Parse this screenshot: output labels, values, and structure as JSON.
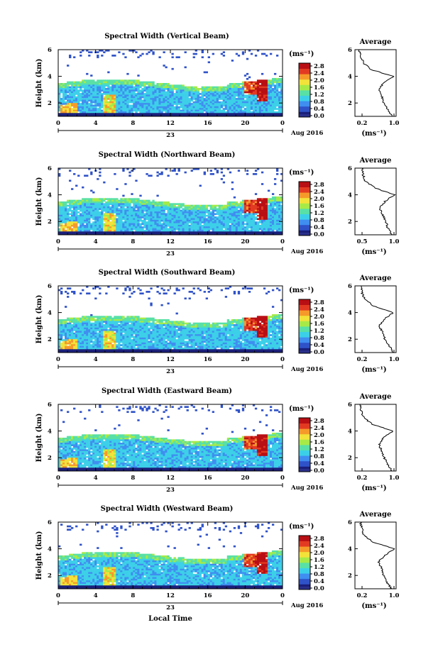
{
  "panels": [
    {
      "title": "Spectral Width (Vertical Beam)",
      "avg_xticks": [
        "0.2",
        "1.0"
      ]
    },
    {
      "title": "Spectral Width (Northward Beam)",
      "avg_xticks": [
        "0.5",
        "1.0"
      ]
    },
    {
      "title": "Spectral Width (Southward Beam)",
      "avg_xticks": [
        "0.2",
        "1.0"
      ]
    },
    {
      "title": "Spectral Width (Eastward Beam)",
      "avg_xticks": [
        "0.2",
        "1.0"
      ]
    },
    {
      "title": "Spectral Width (Westward Beam)",
      "avg_xticks": [
        "0.2",
        "1.0"
      ]
    }
  ],
  "common": {
    "ylabel": "Height (km)",
    "yticks": [
      "2",
      "4",
      "6"
    ],
    "xticks": [
      "0",
      "4",
      "8",
      "12",
      "16",
      "20",
      "0"
    ],
    "day_label": "23",
    "month_label": "Aug 2016",
    "colorbar_unit": "(ms⁻¹)",
    "colorbar_ticks": [
      "0.0",
      "0.4",
      "0.8",
      "1.2",
      "1.6",
      "2.0",
      "2.4",
      "2.8"
    ],
    "avg_title": "Average",
    "avg_unit": "(ms⁻¹)",
    "avg_yticks": [
      "2",
      "4",
      "6"
    ],
    "xlabel_bottom": "Local Time"
  },
  "colors": {
    "colormap": [
      "#1a1f7a",
      "#2f52c8",
      "#3f8ef0",
      "#3cd0e8",
      "#58e0a6",
      "#a7ea48",
      "#f2e23a",
      "#f59a2a",
      "#e23a22",
      "#b80f14"
    ],
    "missing": "#ffffff",
    "noise_band": "#2a2f8a"
  },
  "chart_data": [
    {
      "type": "heatmap",
      "title": "Spectral Width (Vertical Beam)",
      "xlabel": "",
      "ylabel": "Height (km)",
      "x_range_hours": [
        0,
        24
      ],
      "y_range_km": [
        1,
        6
      ],
      "colorbar": {
        "label": "(ms⁻¹)",
        "range": [
          0.0,
          2.8
        ]
      },
      "features": {
        "echo_top_km": [
          4.3,
          4.8
        ],
        "high_width_hours": [
          1,
          5.5,
          20.5,
          22
        ]
      },
      "average_profile": {
        "title": "Average",
        "x_unit": "(ms⁻¹)",
        "height_km": [
          1,
          1.5,
          2,
          2.5,
          3,
          3.5,
          4,
          4.5,
          5,
          5.5,
          6
        ],
        "width": [
          0.95,
          0.85,
          0.75,
          0.7,
          0.62,
          0.75,
          0.98,
          0.45,
          0.25,
          0.2,
          0.15
        ]
      }
    },
    {
      "type": "heatmap",
      "title": "Spectral Width (Northward Beam)",
      "xlabel": "",
      "ylabel": "Height (km)",
      "x_range_hours": [
        0,
        24
      ],
      "y_range_km": [
        1,
        6
      ],
      "colorbar": {
        "label": "(ms⁻¹)",
        "range": [
          0.0,
          2.8
        ]
      },
      "average_profile": {
        "title": "Average",
        "x_unit": "(ms⁻¹)",
        "height_km": [
          1,
          1.5,
          2,
          2.5,
          3,
          3.5,
          4,
          4.5,
          5,
          5.5,
          6
        ],
        "width": [
          0.95,
          0.85,
          0.8,
          0.72,
          0.65,
          0.78,
          1.0,
          0.55,
          0.3,
          0.25,
          0.22
        ]
      }
    },
    {
      "type": "heatmap",
      "title": "Spectral Width (Southward Beam)",
      "xlabel": "",
      "ylabel": "Height (km)",
      "x_range_hours": [
        0,
        24
      ],
      "y_range_km": [
        1,
        6
      ],
      "colorbar": {
        "label": "(ms⁻¹)",
        "range": [
          0.0,
          2.8
        ]
      },
      "average_profile": {
        "title": "Average",
        "x_unit": "(ms⁻¹)",
        "height_km": [
          1,
          1.5,
          2,
          2.5,
          3,
          3.5,
          4,
          4.5,
          5,
          5.5,
          6
        ],
        "width": [
          0.98,
          0.88,
          0.78,
          0.72,
          0.64,
          0.76,
          0.98,
          0.5,
          0.28,
          0.22,
          0.2
        ]
      }
    },
    {
      "type": "heatmap",
      "title": "Spectral Width (Eastward Beam)",
      "xlabel": "",
      "ylabel": "Height (km)",
      "x_range_hours": [
        0,
        24
      ],
      "y_range_km": [
        1,
        6
      ],
      "colorbar": {
        "label": "(ms⁻¹)",
        "range": [
          0.0,
          2.8
        ]
      },
      "average_profile": {
        "title": "Average",
        "x_unit": "(ms⁻¹)",
        "height_km": [
          1,
          1.5,
          2,
          2.5,
          3,
          3.5,
          4,
          4.5,
          5,
          5.5,
          6
        ],
        "width": [
          0.95,
          0.85,
          0.76,
          0.7,
          0.63,
          0.75,
          0.97,
          0.48,
          0.26,
          0.2,
          0.18
        ]
      }
    },
    {
      "type": "heatmap",
      "title": "Spectral Width (Westward Beam)",
      "xlabel": "Local Time",
      "ylabel": "Height (km)",
      "x_range_hours": [
        0,
        24
      ],
      "y_range_km": [
        1,
        6
      ],
      "colorbar": {
        "label": "(ms⁻¹)",
        "range": [
          0.0,
          2.8
        ]
      },
      "average_profile": {
        "title": "Average",
        "x_unit": "(ms⁻¹)",
        "height_km": [
          1,
          1.5,
          2,
          2.5,
          3,
          3.5,
          4,
          4.5,
          5,
          5.5,
          6
        ],
        "width": [
          0.95,
          0.82,
          0.75,
          0.7,
          0.62,
          0.78,
          1.0,
          0.5,
          0.27,
          0.22,
          0.18
        ]
      }
    }
  ]
}
